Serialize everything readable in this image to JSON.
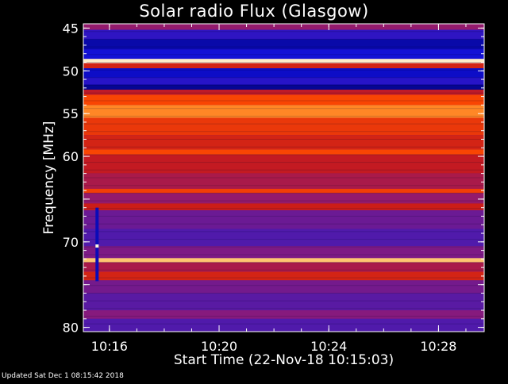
{
  "chart_data": {
    "type": "heatmap",
    "title": "Solar radio Flux (Glasgow)",
    "xlabel": "Start Time (22-Nov-18 10:15:03)",
    "ylabel": "Frequency [MHz]",
    "x_ticks": [
      "10:16",
      "10:20",
      "10:24",
      "10:28"
    ],
    "x_range": [
      "10:15:03",
      "10:29:40"
    ],
    "y_ticks": [
      45,
      50,
      55,
      60,
      65,
      70,
      75,
      80
    ],
    "y_tick_labels": [
      "45",
      "50",
      "55",
      "60",
      "",
      "70",
      "",
      "80"
    ],
    "ylim": [
      44.5,
      80.5
    ],
    "y_axis_inverted": true,
    "colormap": [
      "#00006e",
      "#1010d8",
      "#4a1ab0",
      "#8a1a7a",
      "#c81a1a",
      "#ff4a00",
      "#ffb040",
      "#fff8e0"
    ],
    "frequency_bands": [
      {
        "from": 44.5,
        "to": 45.2,
        "level": 0.45
      },
      {
        "from": 45.2,
        "to": 46.3,
        "level": 0.22
      },
      {
        "from": 46.3,
        "to": 47.5,
        "level": 0.08
      },
      {
        "from": 47.5,
        "to": 48.6,
        "level": 0.15
      },
      {
        "from": 48.6,
        "to": 49.1,
        "level": 0.98
      },
      {
        "from": 49.1,
        "to": 49.7,
        "level": 0.6
      },
      {
        "from": 49.7,
        "to": 50.8,
        "level": 0.12
      },
      {
        "from": 50.8,
        "to": 51.6,
        "level": 0.2
      },
      {
        "from": 51.6,
        "to": 52.2,
        "level": 0.05
      },
      {
        "from": 52.2,
        "to": 52.8,
        "level": 0.55
      },
      {
        "from": 52.8,
        "to": 54.0,
        "level": 0.7
      },
      {
        "from": 54.0,
        "to": 55.5,
        "level": 0.8
      },
      {
        "from": 55.5,
        "to": 57.5,
        "level": 0.66
      },
      {
        "from": 57.5,
        "to": 59.2,
        "level": 0.6
      },
      {
        "from": 59.2,
        "to": 59.8,
        "level": 0.7
      },
      {
        "from": 59.8,
        "to": 62.0,
        "level": 0.56
      },
      {
        "from": 62.0,
        "to": 63.8,
        "level": 0.5
      },
      {
        "from": 63.8,
        "to": 64.3,
        "level": 0.68
      },
      {
        "from": 64.3,
        "to": 65.5,
        "level": 0.45
      },
      {
        "from": 65.5,
        "to": 66.3,
        "level": 0.58
      },
      {
        "from": 66.3,
        "to": 68.5,
        "level": 0.36
      },
      {
        "from": 68.5,
        "to": 70.5,
        "level": 0.3
      },
      {
        "from": 70.5,
        "to": 71.9,
        "level": 0.4
      },
      {
        "from": 71.9,
        "to": 72.4,
        "level": 0.9
      },
      {
        "from": 72.4,
        "to": 73.5,
        "level": 0.5
      },
      {
        "from": 73.5,
        "to": 74.5,
        "level": 0.6
      },
      {
        "from": 74.5,
        "to": 76.0,
        "level": 0.38
      },
      {
        "from": 76.0,
        "to": 78.0,
        "level": 0.32
      },
      {
        "from": 78.0,
        "to": 79.0,
        "level": 0.42
      },
      {
        "from": 79.0,
        "to": 80.5,
        "level": 0.3
      }
    ],
    "burst_events": [
      {
        "time": "10:15:33",
        "freq_from": 66.0,
        "freq_to": 74.6
      }
    ]
  },
  "footer": "Updated Sat Dec  1 08:15:42 2018"
}
